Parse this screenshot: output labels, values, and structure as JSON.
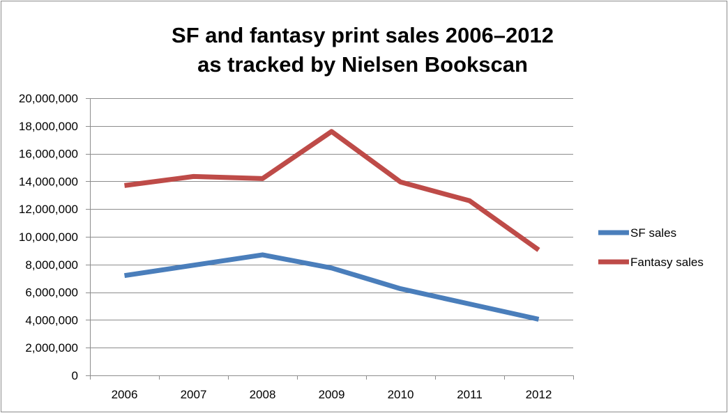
{
  "chart_data": {
    "type": "line",
    "title": [
      "SF and fantasy print sales 2006–2012",
      "as tracked by Nielsen Bookscan"
    ],
    "categories": [
      "2006",
      "2007",
      "2008",
      "2009",
      "2010",
      "2011",
      "2012"
    ],
    "ylim": [
      0,
      20000000
    ],
    "y_ticks": [
      0,
      2000000,
      4000000,
      6000000,
      8000000,
      10000000,
      12000000,
      14000000,
      16000000,
      18000000,
      20000000
    ],
    "y_tick_labels": [
      "0",
      "2,000,000",
      "4,000,000",
      "6,000,000",
      "8,000,000",
      "10,000,000",
      "12,000,000",
      "14,000,000",
      "16,000,000",
      "18,000,000",
      "20,000,000"
    ],
    "grid": true,
    "legend_position": "right",
    "series": [
      {
        "name": "SF sales",
        "color": "#4a7ebb",
        "values": [
          7200000,
          7950000,
          8700000,
          7750000,
          6250000,
          5150000,
          4050000
        ]
      },
      {
        "name": "Fantasy sales",
        "color": "#be4b48",
        "values": [
          13700000,
          14350000,
          14200000,
          17600000,
          13950000,
          12600000,
          9050000
        ]
      }
    ]
  }
}
